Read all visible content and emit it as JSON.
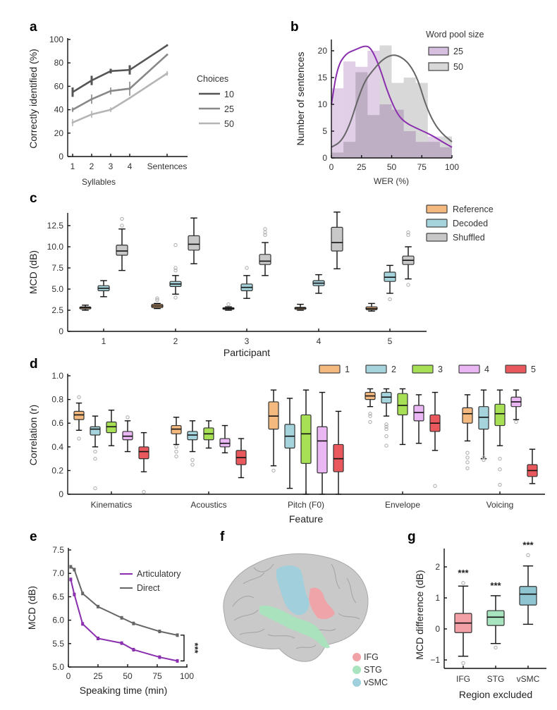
{
  "figure": {
    "panel_labels": [
      "a",
      "b",
      "c",
      "d",
      "e",
      "f",
      "g"
    ]
  },
  "chart_data": [
    {
      "id": "a",
      "type": "line",
      "title": "",
      "xlabel": "Syllables",
      "ylabel": "Correctly identified (%)",
      "categories": [
        "1",
        "2",
        "3",
        "4",
        "Sentences"
      ],
      "ylim": [
        0,
        100
      ],
      "yticks": [
        "0",
        "20",
        "40",
        "60",
        "80",
        "100"
      ],
      "legend": {
        "title": "Choices",
        "placement": "right"
      },
      "series": [
        {
          "name": "10",
          "color": "#555555",
          "values": [
            55,
            65,
            73,
            74,
            95
          ],
          "err": [
            4,
            4,
            2,
            4,
            0
          ]
        },
        {
          "name": "25",
          "color": "#888888",
          "values": [
            40,
            49,
            56,
            58,
            87
          ],
          "err": [
            2,
            4,
            3,
            6,
            0
          ]
        },
        {
          "name": "50",
          "color": "#b5b5b5",
          "values": [
            29,
            36,
            40,
            50,
            71
          ],
          "err": [
            3,
            3,
            2,
            0,
            2
          ]
        }
      ]
    },
    {
      "id": "b",
      "type": "bar",
      "title": "",
      "xlabel": "WER (%)",
      "ylabel": "Number of sentences",
      "xlim": [
        0,
        100
      ],
      "ylim": [
        0,
        22
      ],
      "xticks": [
        "0",
        "25",
        "50",
        "75",
        "100"
      ],
      "yticks": [
        "0",
        "5",
        "10",
        "15",
        "20"
      ],
      "legend": {
        "title": "Word pool size",
        "placement": "top-right"
      },
      "bin_edges": [
        0,
        10,
        20,
        30,
        40,
        50,
        60,
        70,
        80,
        90,
        100
      ],
      "series": [
        {
          "name": "25",
          "color": "#d7bfe0",
          "line_color": "#8a2fae",
          "values": [
            13,
            18,
            17,
            20,
            10,
            9,
            5,
            3,
            4,
            2
          ],
          "density_curve": [
            [
              0,
              10
            ],
            [
              5,
              17
            ],
            [
              12,
              19.5
            ],
            [
              20,
              20.2
            ],
            [
              28,
              21
            ],
            [
              33,
              20.5
            ],
            [
              40,
              17
            ],
            [
              47,
              12
            ],
            [
              55,
              8
            ],
            [
              62,
              6.5
            ],
            [
              70,
              5.6
            ],
            [
              78,
              4.8
            ],
            [
              85,
              4
            ],
            [
              92,
              3
            ],
            [
              100,
              2
            ]
          ]
        },
        {
          "name": "50",
          "color": "#d8d8d8",
          "line_color": "#666666",
          "values": [
            1,
            3,
            16,
            8,
            21,
            14,
            15,
            14,
            3,
            4
          ],
          "density_curve": [
            [
              0,
              2
            ],
            [
              8,
              3
            ],
            [
              15,
              6
            ],
            [
              22,
              11
            ],
            [
              28,
              14.5
            ],
            [
              35,
              16.5
            ],
            [
              42,
              18.3
            ],
            [
              50,
              19.3
            ],
            [
              57,
              19
            ],
            [
              65,
              17.5
            ],
            [
              72,
              14.5
            ],
            [
              78,
              10
            ],
            [
              85,
              6.5
            ],
            [
              92,
              4.5
            ],
            [
              100,
              3
            ]
          ]
        }
      ]
    },
    {
      "id": "c",
      "type": "box",
      "title": "",
      "xlabel": "Participant",
      "ylabel": "MCD (dB)",
      "categories": [
        "1",
        "2",
        "3",
        "4",
        "5"
      ],
      "ylim": [
        0,
        14
      ],
      "yticks": [
        "0",
        "2.5",
        "5.0",
        "7.5",
        "10.0",
        "12.5"
      ],
      "legend": {
        "placement": "top-right"
      },
      "series": [
        {
          "name": "Reference",
          "color": "#f4b97f",
          "boxes": [
            {
              "min": 2.5,
              "q1": 2.65,
              "med": 2.8,
              "q3": 2.9,
              "max": 3.1,
              "outliers": []
            },
            {
              "min": 2.7,
              "q1": 2.8,
              "med": 3.0,
              "q3": 3.2,
              "max": 3.3,
              "outliers": [
                3.7,
                3.9
              ]
            },
            {
              "min": 2.5,
              "q1": 2.6,
              "med": 2.7,
              "q3": 2.8,
              "max": 2.9,
              "outliers": [
                3.2
              ]
            },
            {
              "min": 2.5,
              "q1": 2.6,
              "med": 2.75,
              "q3": 2.85,
              "max": 3.2,
              "outliers": []
            },
            {
              "min": 2.4,
              "q1": 2.55,
              "med": 2.7,
              "q3": 2.9,
              "max": 3.3,
              "outliers": []
            }
          ]
        },
        {
          "name": "Decoded",
          "color": "#a6d4dc",
          "boxes": [
            {
              "min": 4.1,
              "q1": 4.8,
              "med": 5.1,
              "q3": 5.4,
              "max": 6.0,
              "outliers": []
            },
            {
              "min": 4.4,
              "q1": 5.3,
              "med": 5.6,
              "q3": 5.9,
              "max": 6.6,
              "outliers": [
                4.0,
                7.2,
                7.5,
                10.2
              ]
            },
            {
              "min": 3.9,
              "q1": 4.8,
              "med": 5.2,
              "q3": 5.6,
              "max": 6.6,
              "outliers": [
                7.5
              ]
            },
            {
              "min": 4.5,
              "q1": 5.4,
              "med": 5.7,
              "q3": 6.0,
              "max": 6.7,
              "outliers": []
            },
            {
              "min": 4.5,
              "q1": 5.9,
              "med": 6.4,
              "q3": 7.0,
              "max": 7.8,
              "outliers": [
                3.8
              ]
            }
          ]
        },
        {
          "name": "Shuffled",
          "color": "#c8c8c8",
          "boxes": [
            {
              "min": 7.2,
              "q1": 9.0,
              "med": 9.5,
              "q3": 10.2,
              "max": 12.1,
              "outliers": [
                12.5,
                13.3
              ]
            },
            {
              "min": 8.0,
              "q1": 9.6,
              "med": 10.3,
              "q3": 11.3,
              "max": 13.4,
              "outliers": []
            },
            {
              "min": 6.6,
              "q1": 7.9,
              "med": 8.3,
              "q3": 9.1,
              "max": 10.5,
              "outliers": [
                11.4,
                11.7,
                12.1
              ]
            },
            {
              "min": 7.4,
              "q1": 9.5,
              "med": 10.5,
              "q3": 12.3,
              "max": 14.1,
              "outliers": []
            },
            {
              "min": 6.2,
              "q1": 7.9,
              "med": 8.4,
              "q3": 8.9,
              "max": 10.0,
              "outliers": [
                5.5,
                11.4,
                11.7
              ]
            }
          ]
        }
      ]
    },
    {
      "id": "d",
      "type": "box",
      "title": "",
      "xlabel": "Feature",
      "ylabel": "Correlation (r)",
      "categories": [
        "Kinematics",
        "Acoustics",
        "Pitch (F0)",
        "Envelope",
        "Voicing"
      ],
      "ylim": [
        0,
        1.0
      ],
      "yticks": [
        "0",
        "0.2",
        "0.4",
        "0.6",
        "0.8",
        "1.0"
      ],
      "legend": {
        "placement": "top-right",
        "orientation": "horizontal"
      },
      "series": [
        {
          "name": "1",
          "color": "#f4b97f",
          "boxes": [
            {
              "min": 0.54,
              "q1": 0.63,
              "med": 0.67,
              "q3": 0.7,
              "max": 0.77,
              "outliers": [
                0.47,
                0.82
              ]
            },
            {
              "min": 0.42,
              "q1": 0.51,
              "med": 0.55,
              "q3": 0.58,
              "max": 0.65,
              "outliers": [
                0.32,
                0.36,
                0.4
              ]
            },
            {
              "min": 0.24,
              "q1": 0.55,
              "med": 0.66,
              "q3": 0.78,
              "max": 0.88,
              "outliers": [
                0.2
              ]
            },
            {
              "min": 0.74,
              "q1": 0.8,
              "med": 0.83,
              "q3": 0.86,
              "max": 0.89,
              "outliers": [
                0.61,
                0.66,
                0.68
              ]
            },
            {
              "min": 0.45,
              "q1": 0.6,
              "med": 0.68,
              "q3": 0.73,
              "max": 0.84,
              "outliers": [
                0.22,
                0.27,
                0.31,
                0.35
              ]
            }
          ]
        },
        {
          "name": "2",
          "color": "#a6d4dc",
          "boxes": [
            {
              "min": 0.4,
              "q1": 0.5,
              "med": 0.55,
              "q3": 0.57,
              "max": 0.66,
              "outliers": [
                0.05,
                0.3,
                0.36
              ]
            },
            {
              "min": 0.36,
              "q1": 0.46,
              "med": 0.5,
              "q3": 0.53,
              "max": 0.62,
              "outliers": [
                0.25,
                0.29
              ]
            },
            {
              "min": 0.05,
              "q1": 0.39,
              "med": 0.49,
              "q3": 0.59,
              "max": 0.81,
              "outliers": []
            },
            {
              "min": 0.66,
              "q1": 0.77,
              "med": 0.82,
              "q3": 0.86,
              "max": 0.89,
              "outliers": [
                0.41,
                0.49,
                0.55,
                0.57,
                0.59
              ]
            },
            {
              "min": 0.3,
              "q1": 0.55,
              "med": 0.65,
              "q3": 0.74,
              "max": 0.88,
              "outliers": [
                0.29,
                0.31
              ]
            }
          ]
        },
        {
          "name": "3",
          "color": "#a8e055",
          "boxes": [
            {
              "min": 0.41,
              "q1": 0.52,
              "med": 0.57,
              "q3": 0.61,
              "max": 0.71,
              "outliers": []
            },
            {
              "min": 0.39,
              "q1": 0.46,
              "med": 0.51,
              "q3": 0.56,
              "max": 0.62,
              "outliers": []
            },
            {
              "min": 0.0,
              "q1": 0.26,
              "med": 0.51,
              "q3": 0.67,
              "max": 0.88,
              "outliers": []
            },
            {
              "min": 0.42,
              "q1": 0.67,
              "med": 0.75,
              "q3": 0.85,
              "max": 0.89,
              "outliers": []
            },
            {
              "min": 0.41,
              "q1": 0.58,
              "med": 0.68,
              "q3": 0.76,
              "max": 0.88,
              "outliers": [
                0.08,
                0.21,
                0.3
              ]
            }
          ]
        },
        {
          "name": "4",
          "color": "#eab6f4",
          "boxes": [
            {
              "min": 0.36,
              "q1": 0.46,
              "med": 0.49,
              "q3": 0.53,
              "max": 0.62,
              "outliers": [
                0.65
              ]
            },
            {
              "min": 0.35,
              "q1": 0.4,
              "med": 0.43,
              "q3": 0.47,
              "max": 0.58,
              "outliers": []
            },
            {
              "min": 0.0,
              "q1": 0.18,
              "med": 0.45,
              "q3": 0.57,
              "max": 0.86,
              "outliers": []
            },
            {
              "min": 0.43,
              "q1": 0.62,
              "med": 0.69,
              "q3": 0.75,
              "max": 0.84,
              "outliers": []
            },
            {
              "min": 0.63,
              "q1": 0.74,
              "med": 0.78,
              "q3": 0.82,
              "max": 0.88,
              "outliers": [
                0.61
              ]
            }
          ]
        },
        {
          "name": "5",
          "color": "#e8585c",
          "boxes": [
            {
              "min": 0.19,
              "q1": 0.3,
              "med": 0.36,
              "q3": 0.4,
              "max": 0.52,
              "outliers": [
                0.02
              ]
            },
            {
              "min": 0.14,
              "q1": 0.25,
              "med": 0.31,
              "q3": 0.37,
              "max": 0.47,
              "outliers": []
            },
            {
              "min": 0.0,
              "q1": 0.19,
              "med": 0.3,
              "q3": 0.42,
              "max": 0.7,
              "outliers": []
            },
            {
              "min": 0.37,
              "q1": 0.53,
              "med": 0.6,
              "q3": 0.67,
              "max": 0.86,
              "outliers": [
                0.07
              ]
            },
            {
              "min": 0.09,
              "q1": 0.15,
              "med": 0.2,
              "q3": 0.25,
              "max": 0.38,
              "outliers": []
            }
          ]
        }
      ]
    },
    {
      "id": "e",
      "type": "line",
      "title": "",
      "xlabel": "Speaking time (min)",
      "ylabel": "MCD (dB)",
      "xlim": [
        0,
        100
      ],
      "ylim": [
        5.0,
        7.5
      ],
      "xticks": [
        "0",
        "25",
        "50",
        "75",
        "100"
      ],
      "yticks": [
        "5.0",
        "5.5",
        "6.0",
        "6.5",
        "7.0",
        "7.5"
      ],
      "legend": {
        "placement": "top-right"
      },
      "annotation": "***",
      "series": [
        {
          "name": "Articulatory",
          "color": "#8a2fae",
          "x": [
            2,
            5,
            12,
            25,
            45,
            55,
            77,
            92
          ],
          "values": [
            6.87,
            6.55,
            5.92,
            5.61,
            5.51,
            5.37,
            5.21,
            5.13
          ]
        },
        {
          "name": "Direct",
          "color": "#666666",
          "x": [
            2,
            5,
            12,
            25,
            45,
            55,
            77,
            92
          ],
          "values": [
            7.14,
            7.08,
            6.57,
            6.29,
            6.05,
            5.93,
            5.76,
            5.68
          ]
        }
      ]
    },
    {
      "id": "g",
      "type": "box",
      "title": "",
      "xlabel": "Region excluded",
      "ylabel": "MCD difference (dB)",
      "categories": [
        "IFG",
        "STG",
        "vSMC"
      ],
      "ylim": [
        -1.3,
        2.6
      ],
      "yticks": [
        "−1",
        "0",
        "1",
        "2"
      ],
      "annotations": [
        "***",
        "***",
        "***"
      ],
      "boxes": [
        {
          "name": "IFG",
          "color": "#f2a0a6",
          "min": -0.88,
          "q1": -0.12,
          "med": 0.19,
          "q3": 0.5,
          "max": 1.38,
          "outliers": [
            -1.1,
            1.48
          ]
        },
        {
          "name": "STG",
          "color": "#a8e4bd",
          "min": -0.47,
          "q1": 0.11,
          "med": 0.38,
          "q3": 0.59,
          "max": 1.07,
          "outliers": [
            -0.6
          ]
        },
        {
          "name": "vSMC",
          "color": "#8ec5d0",
          "min": 0.15,
          "q1": 0.77,
          "med": 1.12,
          "q3": 1.37,
          "max": 2.03,
          "outliers": [
            2.38
          ]
        }
      ]
    }
  ],
  "panel_f": {
    "description": "Lateral brain surface with highlighted regions",
    "legend": [
      {
        "name": "IFG",
        "color": "#f0a2a6"
      },
      {
        "name": "STG",
        "color": "#a8e4bd"
      },
      {
        "name": "vSMC",
        "color": "#9fd0dc"
      }
    ]
  }
}
